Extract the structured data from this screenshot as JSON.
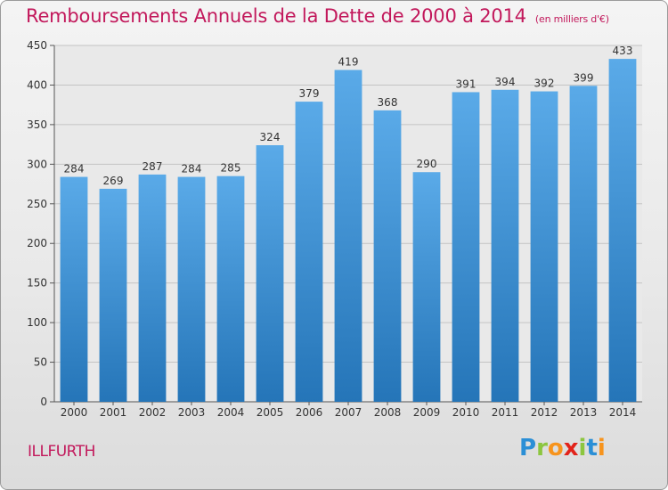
{
  "header": {
    "title": "Remboursements Annuels de la Dette de 2000 à 2014",
    "unit": "(en milliers d'€)"
  },
  "footer": {
    "commune": "ILLFURTH",
    "logo_letters": [
      "P",
      "r",
      "o",
      "x",
      "i",
      "t",
      "i"
    ],
    "logo_colors": [
      "#2b8fd6",
      "#8cc63f",
      "#f7941d",
      "#e2231a",
      "#8cc63f",
      "#2b8fd6",
      "#f7941d"
    ]
  },
  "colors": {
    "bar_light": "#5aaae8",
    "bar_dark": "#2575b8",
    "title": "#c2185b"
  },
  "chart_data": {
    "type": "bar",
    "title": "Remboursements Annuels de la Dette de 2000 à 2014",
    "xlabel": "",
    "ylabel": "",
    "categories": [
      "2000",
      "2001",
      "2002",
      "2003",
      "2004",
      "2005",
      "2006",
      "2007",
      "2008",
      "2009",
      "2010",
      "2011",
      "2012",
      "2013",
      "2014"
    ],
    "values": [
      284,
      269,
      287,
      284,
      285,
      324,
      379,
      419,
      368,
      290,
      391,
      394,
      392,
      399,
      433
    ],
    "ylim": [
      0,
      450
    ],
    "yticks": [
      0,
      50,
      100,
      150,
      200,
      250,
      300,
      350,
      400,
      450
    ],
    "grid": true,
    "grid_axis": "y",
    "data_labels": true
  }
}
